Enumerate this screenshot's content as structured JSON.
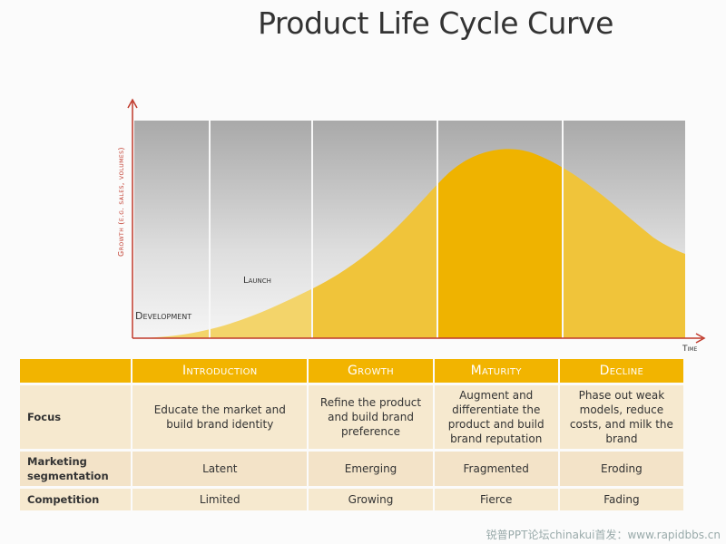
{
  "title": "Product Life Cycle Curve",
  "y_axis_label": "Growth (e.g. sales, volumes)",
  "x_axis_label": "Time",
  "curve_labels": {
    "development": "Development",
    "launch": "Launch"
  },
  "stages": [
    "Introduction",
    "Growth",
    "Maturity",
    "Decline"
  ],
  "table": {
    "rows": [
      {
        "label": "Focus",
        "cells": [
          "Educate the market and build brand identity",
          "Refine the product and build brand preference",
          "Augment and differentiate the product and build brand reputation",
          "Phase out weak models, reduce costs, and milk the brand"
        ]
      },
      {
        "label": "Marketing segmentation",
        "cells": [
          "Latent",
          "Emerging",
          "Fragmented",
          "Eroding"
        ]
      },
      {
        "label": "Competition",
        "cells": [
          "Limited",
          "Growing",
          "Fierce",
          "Fading"
        ]
      }
    ]
  },
  "watermark": "锐普PPT论坛chinakui首发：www.rapidbbs.cn",
  "colors": {
    "accent": "#f2b400",
    "axis": "#c0392b",
    "curve_light": "#f3d46a",
    "curve_dark": "#f0b400"
  }
}
